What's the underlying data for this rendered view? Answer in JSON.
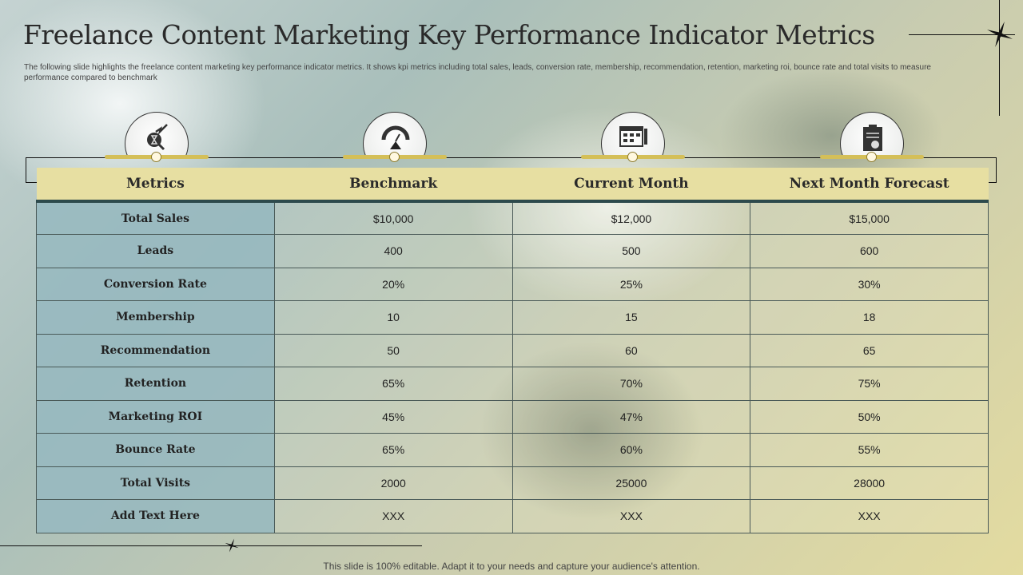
{
  "title": "Freelance Content Marketing Key Performance Indicator Metrics",
  "subtitle": "The following slide highlights the freelance content marketing key performance indicator metrics. It shows kpi metrics including total sales, leads, conversion rate, membership, recommendation, retention, marketing roi, bounce rate and total visits to measure performance compared to benchmark",
  "icons": [
    "analytics-search-icon",
    "speedometer-icon",
    "calendar-checklist-icon",
    "clipboard-chart-icon"
  ],
  "table": {
    "headers": [
      "Metrics",
      "Benchmark",
      "Current Month",
      "Next Month Forecast"
    ],
    "rows": [
      [
        "Total Sales",
        "$10,000",
        "$12,000",
        "$15,000"
      ],
      [
        "Leads",
        "400",
        "500",
        "600"
      ],
      [
        "Conversion Rate",
        "20%",
        "25%",
        "30%"
      ],
      [
        "Membership",
        "10",
        "15",
        "18"
      ],
      [
        "Recommendation",
        "50",
        "60",
        "65"
      ],
      [
        "Retention",
        "65%",
        "70%",
        "75%"
      ],
      [
        "Marketing ROI",
        "45%",
        "47%",
        "50%"
      ],
      [
        "Bounce Rate",
        "65%",
        "60%",
        "55%"
      ],
      [
        "Total Visits",
        "2000",
        "25000",
        "28000"
      ],
      [
        "Add Text Here",
        "XXX",
        "XXX",
        "XXX"
      ]
    ]
  },
  "footer": "This slide is 100% editable. Adapt it to your needs and capture your audience's attention."
}
